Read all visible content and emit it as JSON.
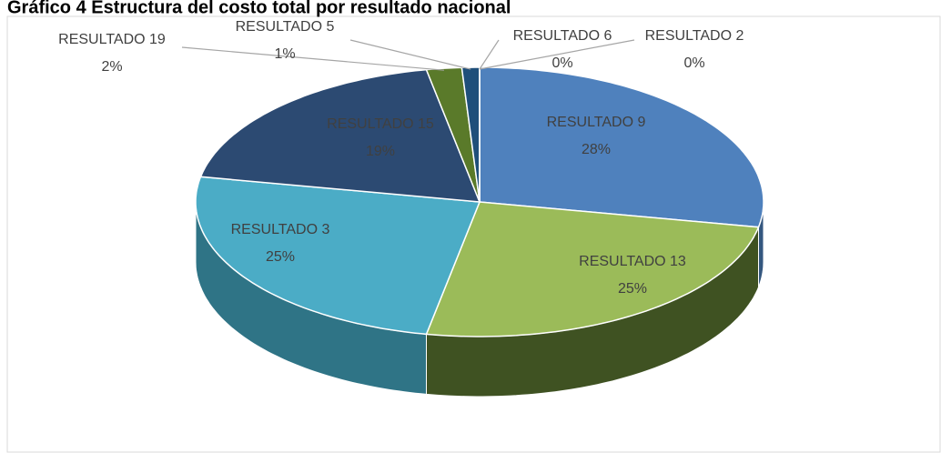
{
  "chart_data": {
    "type": "pie",
    "title": "Gráfico 4 Estructura del costo total por resultado nacional",
    "categories": [
      "RESULTADO 9",
      "RESULTADO 13",
      "RESULTADO 3",
      "RESULTADO 15",
      "RESULTADO 19",
      "RESULTADO 5",
      "RESULTADO 6",
      "RESULTADO 2"
    ],
    "values": [
      28,
      25,
      25,
      19,
      2,
      1,
      0,
      0
    ],
    "value_labels": [
      "28%",
      "25%",
      "25%",
      "19%",
      "2%",
      "1%",
      "0%",
      "0%"
    ],
    "colors": [
      "#4f81bd",
      "#9bbb59",
      "#4bacc6",
      "#2c4a72",
      "#5a7a2a",
      "#1f4f7a",
      "#7fa3d3",
      "#c3d69b"
    ],
    "side_colors": [
      "#34577f",
      "#3f5222",
      "#2f7486",
      "#1c304a",
      "#3a4f1b",
      "#14334f",
      "#56708f",
      "#87946a"
    ]
  }
}
